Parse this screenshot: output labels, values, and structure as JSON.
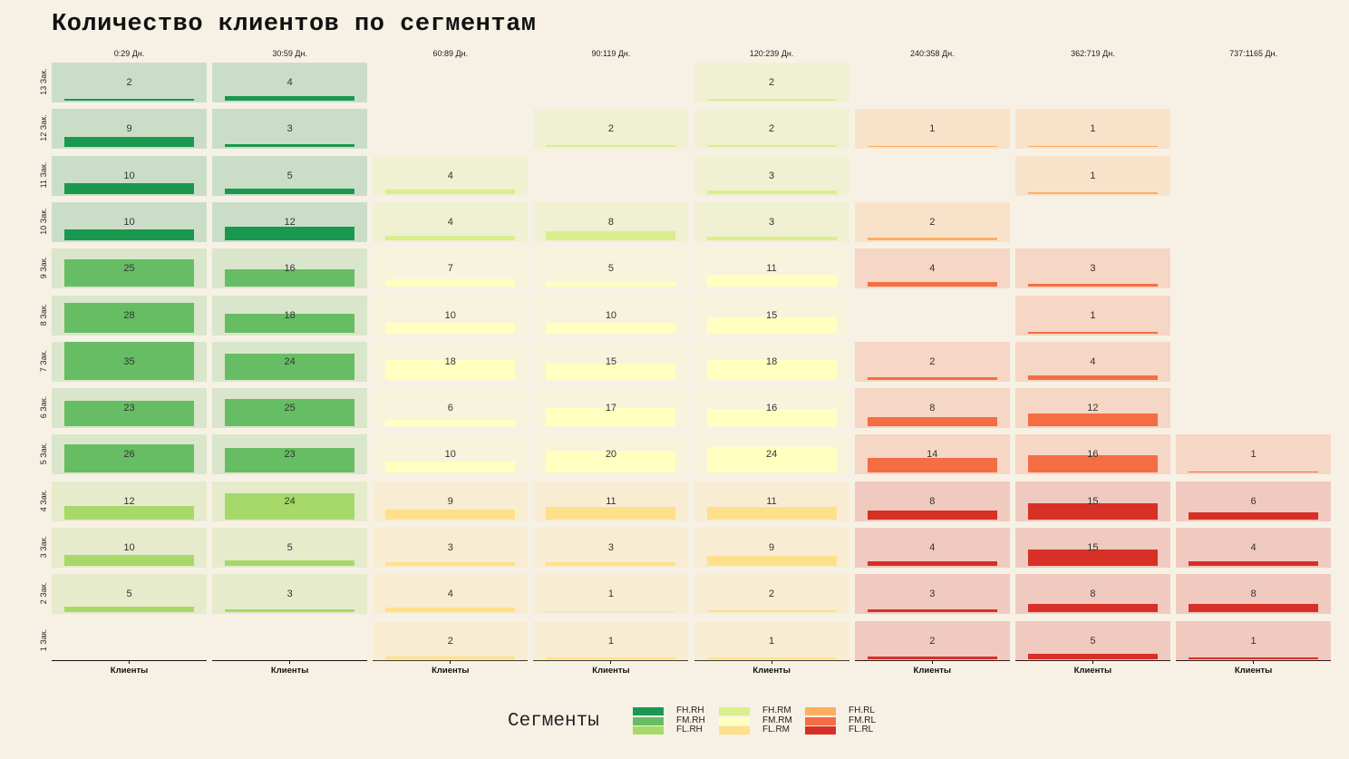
{
  "chart_data": {
    "type": "bar",
    "title": "Количество клиентов по сегментам",
    "columns": [
      "0:29 Дн.",
      "30:59 Дн.",
      "60:89 Дн.",
      "90:119 Дн.",
      "120:239 Дн.",
      "240:358 Дн.",
      "362:719 Дн.",
      "737:1165 Дн."
    ],
    "rows": [
      "13 Зак.",
      "12 Зак.",
      "11 Зак.",
      "10 Зак.",
      "9 Зак.",
      "8 Зак.",
      "7 Зак.",
      "6 Зак.",
      "5 Зак.",
      "4 Зак.",
      "3 Зак.",
      "2 Зак.",
      "1 Зак."
    ],
    "xlabel": "Клиенты",
    "values": [
      [
        2,
        4,
        null,
        null,
        2,
        null,
        null,
        null
      ],
      [
        9,
        3,
        null,
        2,
        2,
        1,
        1,
        null
      ],
      [
        10,
        5,
        4,
        null,
        3,
        null,
        1,
        null
      ],
      [
        10,
        12,
        4,
        8,
        3,
        2,
        null,
        null
      ],
      [
        25,
        16,
        7,
        5,
        11,
        4,
        3,
        null
      ],
      [
        28,
        18,
        10,
        10,
        15,
        null,
        1,
        null
      ],
      [
        35,
        24,
        18,
        15,
        18,
        2,
        4,
        null
      ],
      [
        23,
        25,
        6,
        17,
        16,
        8,
        12,
        null
      ],
      [
        26,
        23,
        10,
        20,
        24,
        14,
        16,
        1
      ],
      [
        12,
        24,
        9,
        11,
        11,
        8,
        15,
        6
      ],
      [
        10,
        5,
        3,
        3,
        9,
        4,
        15,
        4
      ],
      [
        5,
        3,
        4,
        1,
        2,
        3,
        8,
        8
      ],
      [
        null,
        null,
        2,
        1,
        1,
        2,
        5,
        1
      ]
    ],
    "row_frequency_group": [
      "FH",
      "FH",
      "FH",
      "FH",
      "FM",
      "FM",
      "FM",
      "FM",
      "FM",
      "FL",
      "FL",
      "FL",
      "FL"
    ],
    "column_recency_group": [
      "RH",
      "RH",
      "RM",
      "RM",
      "RM",
      "RL",
      "RL",
      "RL"
    ],
    "ylim": [
      0,
      35
    ],
    "grid": false,
    "legend": {
      "title": "Сегменты",
      "position": "bottom",
      "entries": [
        {
          "name": "FH.RH",
          "color": "#1a9850"
        },
        {
          "name": "FM.RH",
          "color": "#66bd63"
        },
        {
          "name": "FL.RH",
          "color": "#a6d96a"
        },
        {
          "name": "FH.RM",
          "color": "#d9ef8b"
        },
        {
          "name": "FM.RM",
          "color": "#ffffbf"
        },
        {
          "name": "FL.RM",
          "color": "#fee08b"
        },
        {
          "name": "FH.RL",
          "color": "#fdae61"
        },
        {
          "name": "FM.RL",
          "color": "#f46d43"
        },
        {
          "name": "FL.RL",
          "color": "#d73027"
        }
      ]
    }
  }
}
